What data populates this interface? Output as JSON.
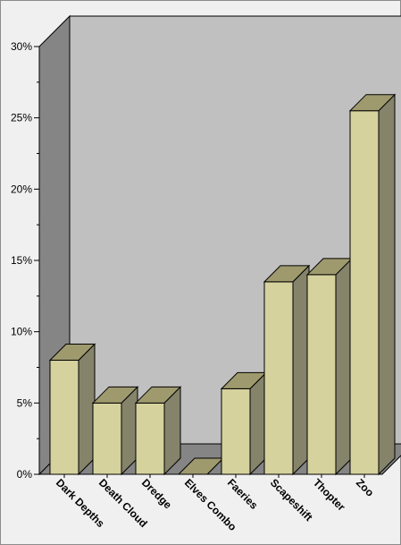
{
  "chart_data": {
    "type": "bar",
    "style": "3d",
    "title": "",
    "xlabel": "",
    "ylabel": "",
    "categories": [
      "Dark Depths",
      "Death Cloud",
      "Dredge",
      "Elves Combo",
      "Faeries",
      "Scapeshift",
      "Thopter",
      "Zoo"
    ],
    "values": [
      8.0,
      5.0,
      5.0,
      0.0,
      6.0,
      13.5,
      14.0,
      25.5
    ],
    "value_unit": "%",
    "ylim": [
      0,
      30
    ],
    "yticks": [
      0,
      5,
      10,
      15,
      20,
      25,
      30
    ],
    "ytick_labels": [
      "0%",
      "5%",
      "10%",
      "15%",
      "20%",
      "25%",
      "30%"
    ],
    "grid": false,
    "legend": "none",
    "colors": {
      "bar_front": "#d6d29e",
      "bar_top": "#9e9a6e",
      "bar_side": "#85836a",
      "back_wall": "#c0c0c0",
      "side_wall": "#858585",
      "floor": "#858585",
      "background": "#f0f0f0"
    }
  }
}
